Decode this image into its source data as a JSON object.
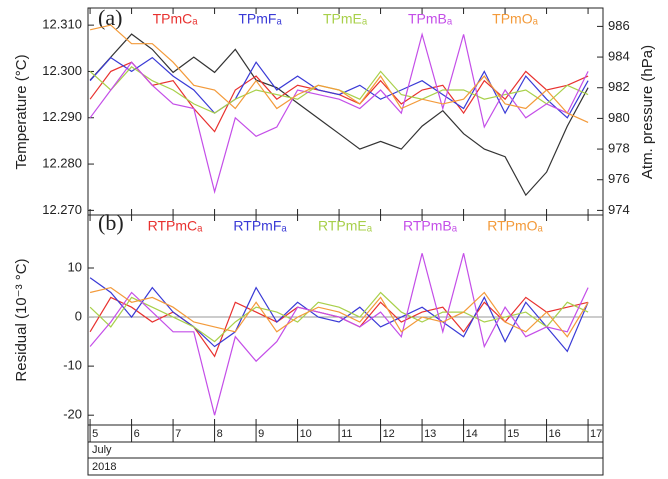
{
  "chart_data": [
    {
      "type": "line",
      "panel_label": "(a)",
      "ylabel": "Temperature (°C)",
      "y2label": "Atm. pressure (hPa)",
      "x": [
        5,
        5.5,
        6,
        6.5,
        7,
        7.5,
        8,
        8.5,
        9,
        9.5,
        10,
        10.5,
        11,
        11.5,
        12,
        12.5,
        13,
        13.5,
        14,
        14.5,
        15,
        15.5,
        16,
        16.5,
        17
      ],
      "xlim": [
        4.95,
        17.36
      ],
      "ylim": [
        12.269,
        12.3137
      ],
      "yticks": [
        {
          "value": 12.27,
          "label": "12.270"
        },
        {
          "value": 12.28,
          "label": "12.280"
        },
        {
          "value": 12.29,
          "label": "12.290"
        },
        {
          "value": 12.3,
          "label": "12.300"
        },
        {
          "value": 12.31,
          "label": "12.310"
        }
      ],
      "y2lim": [
        973.7,
        987.2
      ],
      "y2ticks": [
        974,
        976,
        978,
        980,
        982,
        984,
        986
      ],
      "series": [
        {
          "name": "TPmCₐ",
          "color": "#e8312f",
          "values": [
            12.294,
            12.3,
            12.302,
            12.297,
            12.298,
            12.292,
            12.287,
            12.296,
            12.299,
            12.294,
            12.297,
            12.296,
            12.295,
            12.293,
            12.298,
            12.293,
            12.296,
            12.297,
            12.291,
            12.298,
            12.294,
            12.3,
            12.296,
            12.297,
            12.299
          ]
        },
        {
          "name": "TPmFₐ",
          "color": "#3a3ad6",
          "values": [
            12.298,
            12.303,
            12.3,
            12.303,
            12.299,
            12.296,
            12.291,
            12.294,
            12.302,
            12.296,
            12.299,
            12.296,
            12.295,
            12.297,
            12.294,
            12.296,
            12.298,
            12.295,
            12.292,
            12.3,
            12.291,
            12.299,
            12.294,
            12.29,
            12.298
          ]
        },
        {
          "name": "TPmEₐ",
          "color": "#a8d04a",
          "values": [
            12.3,
            12.296,
            12.301,
            12.298,
            12.296,
            12.293,
            12.291,
            12.294,
            12.296,
            12.295,
            12.294,
            12.297,
            12.296,
            12.294,
            12.3,
            12.295,
            12.294,
            12.296,
            12.296,
            12.294,
            12.295,
            12.296,
            12.293,
            12.297,
            12.295
          ]
        },
        {
          "name": "TPmBₐ",
          "color": "#c44ee8",
          "values": [
            12.29,
            12.296,
            12.302,
            12.297,
            12.293,
            12.292,
            12.274,
            12.29,
            12.286,
            12.288,
            12.296,
            12.295,
            12.294,
            12.292,
            12.296,
            12.291,
            12.308,
            12.292,
            12.308,
            12.288,
            12.296,
            12.29,
            12.293,
            12.291,
            12.3
          ]
        },
        {
          "name": "TPmOₐ",
          "color": "#f39a3a",
          "values": [
            12.309,
            12.31,
            12.306,
            12.306,
            12.302,
            12.297,
            12.296,
            12.292,
            12.298,
            12.292,
            12.295,
            12.297,
            12.296,
            12.293,
            12.299,
            12.292,
            12.294,
            12.293,
            12.294,
            12.299,
            12.293,
            12.292,
            12.296,
            12.291,
            12.289
          ]
        },
        {
          "color": "#333333",
          "axis": "y2",
          "values": [
            982.5,
            984,
            985.5,
            984.5,
            983,
            984,
            983,
            984.5,
            982.5,
            982,
            981,
            980,
            979,
            978,
            978.5,
            978,
            979.5,
            980.5,
            979,
            978,
            977.5,
            975,
            976.5,
            979.5,
            982
          ]
        }
      ]
    },
    {
      "type": "line",
      "panel_label": "(b)",
      "ylabel": "Residual (10⁻³ °C)",
      "x": [
        5,
        5.5,
        6,
        6.5,
        7,
        7.5,
        8,
        8.5,
        9,
        9.5,
        10,
        10.5,
        11,
        11.5,
        12,
        12.5,
        13,
        13.5,
        14,
        14.5,
        15,
        15.5,
        16,
        16.5,
        17
      ],
      "xlim": [
        4.95,
        17.36
      ],
      "xticks": [
        5,
        6,
        7,
        8,
        9,
        10,
        11,
        12,
        13,
        14,
        15,
        16,
        17
      ],
      "x_label_rows": [
        "July",
        "2018"
      ],
      "ylim": [
        -22,
        20.8
      ],
      "yticks": [
        -20,
        -10,
        0,
        10
      ],
      "series": [
        {
          "name": "RTPmCₐ",
          "color": "#e8312f",
          "values": [
            -3,
            4,
            2,
            -1,
            1,
            -2,
            -8,
            3,
            1,
            -1,
            2,
            1,
            0,
            -2,
            3,
            -1,
            1,
            2,
            -3,
            3,
            -1,
            4,
            1,
            2,
            3
          ]
        },
        {
          "name": "RTPmFₐ",
          "color": "#3a3ad6",
          "values": [
            8,
            5,
            0,
            6,
            1,
            -2,
            -6,
            -3,
            6,
            -1,
            3,
            0,
            -1,
            2,
            -2,
            0,
            2,
            -1,
            -4,
            4,
            -5,
            3,
            -2,
            -7,
            3
          ]
        },
        {
          "name": "RTPmEₐ",
          "color": "#a8d04a",
          "values": [
            2,
            -2,
            4,
            2,
            0,
            -2,
            -5,
            -1,
            2,
            1,
            -1,
            3,
            2,
            0,
            5,
            1,
            -1,
            1,
            1,
            -1,
            0,
            1,
            -2,
            3,
            1
          ]
        },
        {
          "name": "RTPmBₐ",
          "color": "#c44ee8",
          "values": [
            -6,
            -1,
            5,
            1,
            -3,
            -3,
            -20,
            -4,
            -9,
            -5,
            2,
            1,
            0,
            -2,
            1,
            -4,
            13,
            -3,
            13,
            -6,
            2,
            -4,
            -2,
            -3,
            6
          ]
        },
        {
          "name": "RTPmOₐ",
          "color": "#f39a3a",
          "values": [
            5,
            6,
            3,
            4,
            2,
            -1,
            -2,
            -3,
            3,
            -3,
            0,
            2,
            1,
            -1,
            4,
            -3,
            0,
            -1,
            1,
            5,
            -1,
            -3,
            1,
            -4,
            3
          ]
        }
      ]
    }
  ]
}
